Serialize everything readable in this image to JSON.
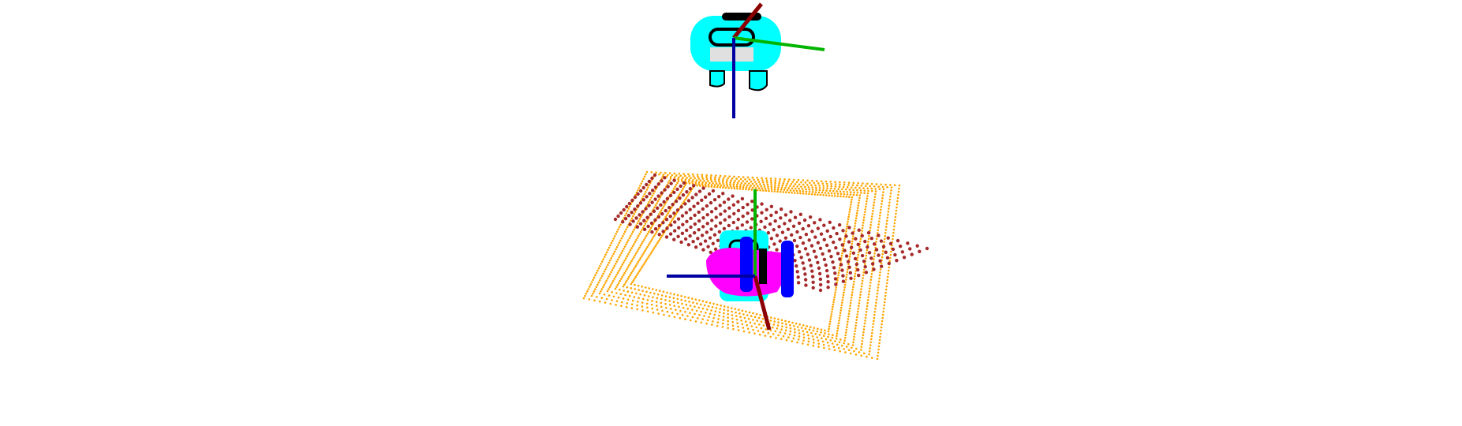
{
  "scene": {
    "background_color": "#ffffff",
    "colors": {
      "tray_points": "#ffa500",
      "grid_points": "#a52a2a",
      "object_points": "#00ffff",
      "object_outline": "#000000",
      "gripper_magenta": "#ff00ff",
      "gripper_blue": "#0000ff",
      "axis_x": "#8b0000",
      "axis_y": "#00b400",
      "axis_z": "#0000a0"
    },
    "icons": [
      "coordinate-frame-icon",
      "point-cloud-icon"
    ]
  }
}
